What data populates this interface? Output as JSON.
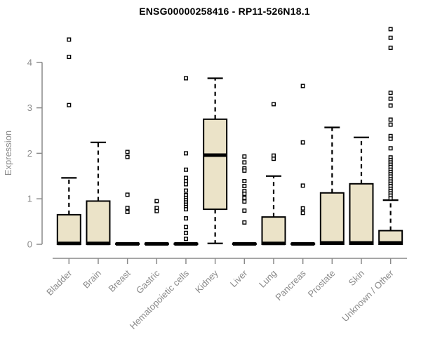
{
  "chart_data": {
    "type": "boxplot",
    "title": "ENSG00000258416 - RP11-526N18.1",
    "xlabel": "",
    "ylabel": "Expression",
    "ylim": [
      0,
      4.8
    ],
    "yticks": [
      0,
      1,
      2,
      3,
      4
    ],
    "grid": false,
    "legend": "none",
    "axis_color": "#8a8a8a",
    "box_fill_color": "#ebe3c8",
    "box_stroke_color": "#000000",
    "outlier_marker": "open-square",
    "categories": [
      "Bladder",
      "Brain",
      "Breast",
      "Gastric",
      "Hematopoietic cells",
      "Kidney",
      "Liver",
      "Lung",
      "Pancreas",
      "Prostate",
      "Skin",
      "Unknown / Other"
    ],
    "series": [
      {
        "name": "Bladder",
        "q1": 0,
        "median": 0.02,
        "q3": 0.65,
        "whisker_low": 0,
        "whisker_high": 1.46,
        "outliers": [
          4.5,
          4.12,
          3.06
        ]
      },
      {
        "name": "Brain",
        "q1": 0,
        "median": 0.02,
        "q3": 0.95,
        "whisker_low": 0,
        "whisker_high": 2.24,
        "outliers": []
      },
      {
        "name": "Breast",
        "q1": 0,
        "median": 0.01,
        "q3": 0.02,
        "whisker_low": 0,
        "whisker_high": 0.02,
        "outliers": [
          2.03,
          1.92,
          1.09,
          0.8,
          0.71
        ]
      },
      {
        "name": "Gastric",
        "q1": 0,
        "median": 0.01,
        "q3": 0.02,
        "whisker_low": 0,
        "whisker_high": 0.02,
        "outliers": [
          0.95,
          0.8,
          0.73
        ]
      },
      {
        "name": "Hematopoietic cells",
        "q1": 0,
        "median": 0.01,
        "q3": 0.02,
        "whisker_low": 0,
        "whisker_high": 0.02,
        "outliers": [
          3.65,
          2.0,
          1.64,
          1.46,
          1.39,
          1.32,
          1.18,
          1.08,
          1.02,
          0.97,
          0.92,
          0.87,
          0.82,
          0.77,
          0.57,
          0.38,
          0.25,
          0.12
        ]
      },
      {
        "name": "Kidney",
        "q1": 0.77,
        "median": 1.96,
        "q3": 2.75,
        "whisker_low": 0.02,
        "whisker_high": 3.65,
        "outliers": []
      },
      {
        "name": "Liver",
        "q1": 0,
        "median": 0.01,
        "q3": 0.02,
        "whisker_low": 0,
        "whisker_high": 0.02,
        "outliers": [
          1.93,
          1.8,
          1.67,
          1.62,
          1.39,
          1.28,
          1.17,
          1.11,
          1.02,
          0.94,
          0.74,
          0.48
        ]
      },
      {
        "name": "Lung",
        "q1": 0,
        "median": 0.02,
        "q3": 0.6,
        "whisker_low": 0,
        "whisker_high": 1.5,
        "outliers": [
          3.08,
          1.95,
          1.88
        ]
      },
      {
        "name": "Pancreas",
        "q1": 0,
        "median": 0.01,
        "q3": 0.02,
        "whisker_low": 0,
        "whisker_high": 0.02,
        "outliers": [
          3.48,
          2.24,
          1.29,
          0.79,
          0.69
        ]
      },
      {
        "name": "Prostate",
        "q1": 0,
        "median": 0.03,
        "q3": 1.13,
        "whisker_low": 0,
        "whisker_high": 2.57,
        "outliers": []
      },
      {
        "name": "Skin",
        "q1": 0,
        "median": 0.03,
        "q3": 1.33,
        "whisker_low": 0,
        "whisker_high": 2.35,
        "outliers": []
      },
      {
        "name": "Unknown / Other",
        "q1": 0,
        "median": 0.03,
        "q3": 0.3,
        "whisker_low": 0,
        "whisker_high": 0.97,
        "outliers": [
          4.73,
          4.54,
          4.32,
          3.33,
          3.2,
          3.05,
          2.74,
          2.63,
          2.38,
          2.32,
          2.11,
          1.91,
          1.85,
          1.8,
          1.75,
          1.7,
          1.64,
          1.59,
          1.54,
          1.49,
          1.43,
          1.38,
          1.33,
          1.28,
          1.22,
          1.17,
          1.12,
          1.07,
          1.01
        ]
      }
    ]
  }
}
